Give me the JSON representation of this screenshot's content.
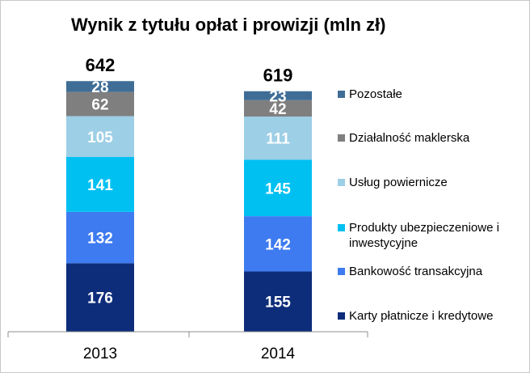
{
  "chart_data": {
    "type": "bar",
    "stacked": true,
    "title": "Wynik z tytułu opłat i prowizji (mln zł)",
    "categories": [
      "2013",
      "2014"
    ],
    "totals": [
      642,
      619
    ],
    "series": [
      {
        "name": "Karty płatnicze i kredytowe",
        "values": [
          176,
          155
        ],
        "color": "#0D2D7A"
      },
      {
        "name": "Bankowość transakcyjna",
        "values": [
          132,
          142
        ],
        "color": "#3E7BF0"
      },
      {
        "name": [
          "Produkty ubezpieczeniowe i",
          "inwestycyjne"
        ],
        "values": [
          141,
          145
        ],
        "color": "#00C0F2"
      },
      {
        "name": "Usług powiernicze",
        "values": [
          105,
          111
        ],
        "color": "#9DCFE6"
      },
      {
        "name": "Działalność maklerska",
        "values": [
          62,
          42
        ],
        "color": "#7F7F7F"
      },
      {
        "name": "Pozostałe",
        "values": [
          28,
          23
        ],
        "color": "#3F6D96"
      }
    ],
    "legend_position": "right",
    "grid": false
  }
}
